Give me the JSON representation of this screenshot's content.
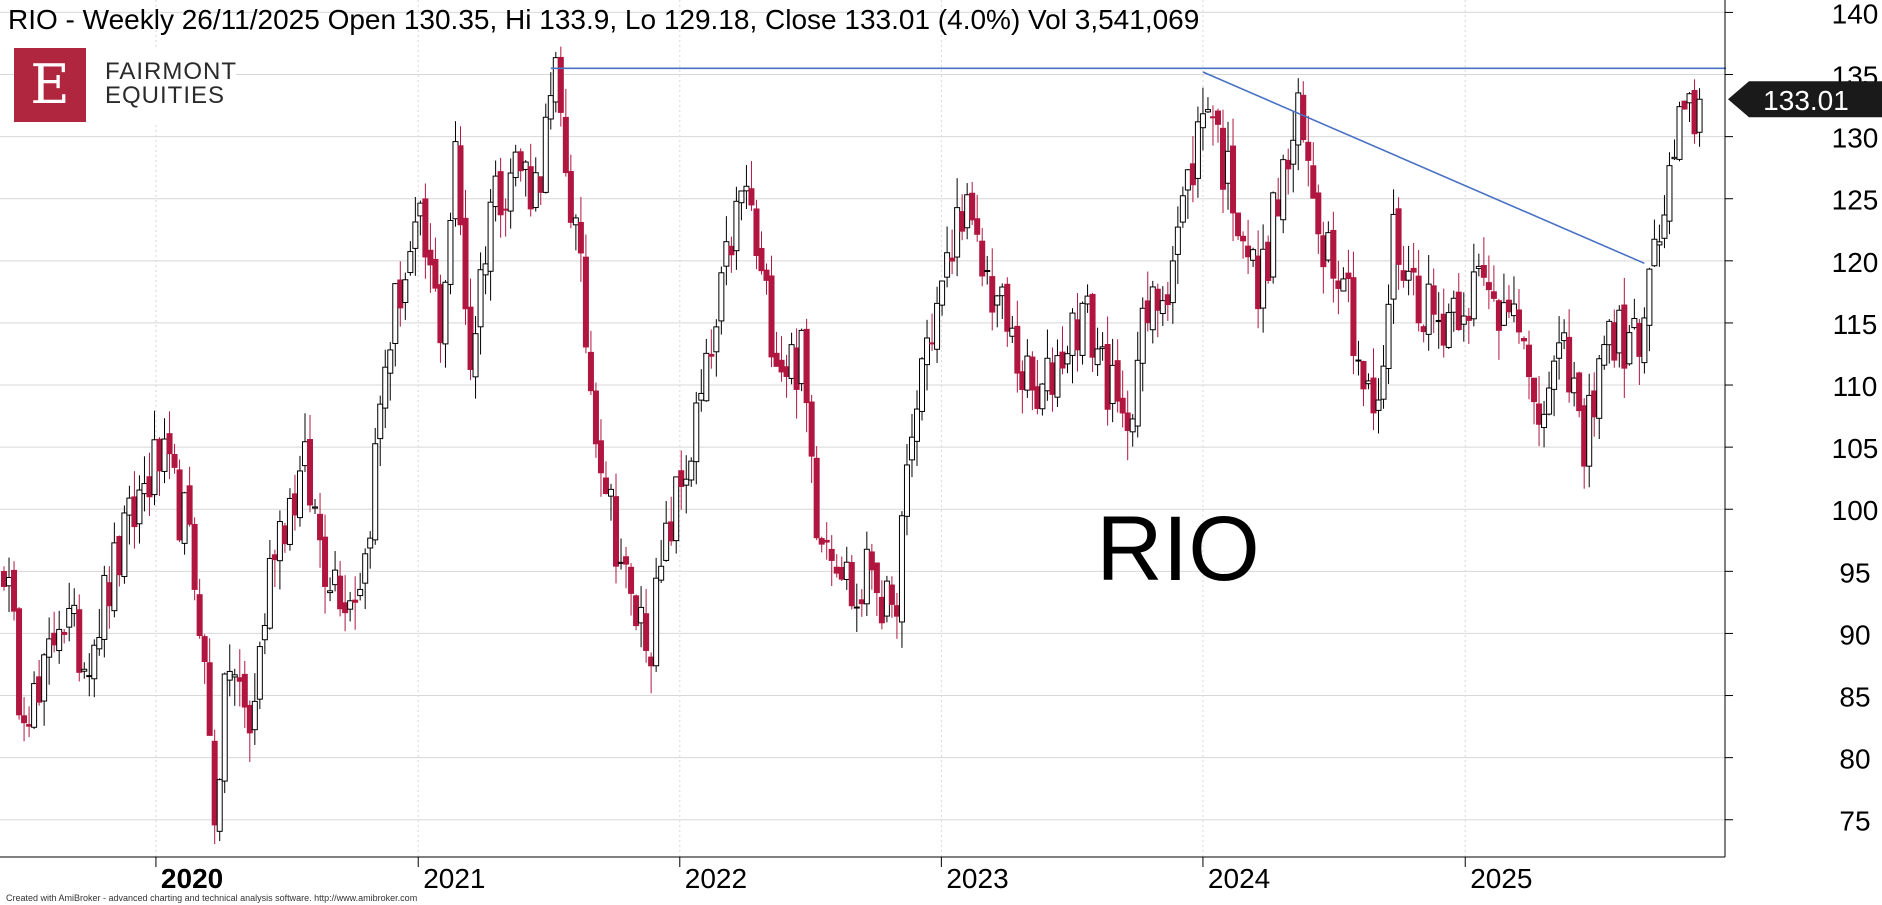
{
  "header": {
    "title": "RIO - Weekly 26/11/2025 Open 130.35, Hi 133.9, Lo 129.18, Close 133.01 (4.0%) Vol 3,541,069"
  },
  "logo": {
    "letter": "E",
    "line1": "FAIRMONT",
    "line2": "EQUITIES",
    "color": "#b0263f"
  },
  "watermark": "RIO",
  "footer": "Created with AmiBroker - advanced charting and technical analysis software. http://www.amibroker.com",
  "price_label": "133.01",
  "colors": {
    "up": "#ffffff",
    "down": "#b0163f",
    "outline": "#000000",
    "trendline": "#4a72c4",
    "grid": "#d8d8d8"
  },
  "chart_data": {
    "type": "candlestick",
    "symbol": "RIO",
    "interval": "Weekly",
    "ylim": [
      72,
      141
    ],
    "y_ticks": [
      75,
      80,
      85,
      90,
      95,
      100,
      105,
      110,
      115,
      120,
      125,
      130,
      135,
      140
    ],
    "x_ticks": [
      "2020",
      "2021",
      "2022",
      "2023",
      "2024",
      "2025"
    ],
    "x_tick_dates": [
      "2020-01-01",
      "2021-01-01",
      "2022-01-01",
      "2023-01-01",
      "2024-01-01",
      "2025-01-01"
    ],
    "start_date": "2019-06-03",
    "end_date": "2025-11-26",
    "last_close": 133.01,
    "anchors": [
      [
        "2019-06-03",
        96
      ],
      [
        "2019-06-24",
        86
      ],
      [
        "2019-07-22",
        84
      ],
      [
        "2019-08-19",
        92
      ],
      [
        "2019-09-23",
        88
      ],
      [
        "2019-11-04",
        95
      ],
      [
        "2019-12-16",
        102
      ],
      [
        "2020-01-06",
        104
      ],
      [
        "2020-02-10",
        99
      ],
      [
        "2020-03-02",
        92
      ],
      [
        "2020-03-23",
        76
      ],
      [
        "2020-04-13",
        88
      ],
      [
        "2020-05-11",
        82
      ],
      [
        "2020-06-15",
        98
      ],
      [
        "2020-07-27",
        103
      ],
      [
        "2020-08-24",
        96
      ],
      [
        "2020-09-28",
        93
      ],
      [
        "2020-10-19",
        96
      ],
      [
        "2020-11-16",
        112
      ],
      [
        "2020-12-07",
        118
      ],
      [
        "2021-01-04",
        122
      ],
      [
        "2021-02-01",
        115
      ],
      [
        "2021-02-22",
        128
      ],
      [
        "2021-03-15",
        112
      ],
      [
        "2021-04-12",
        125
      ],
      [
        "2021-05-17",
        128
      ],
      [
        "2021-06-14",
        126
      ],
      [
        "2021-07-12",
        134
      ],
      [
        "2021-08-09",
        122
      ],
      [
        "2021-08-30",
        110
      ],
      [
        "2021-09-27",
        100
      ],
      [
        "2021-10-25",
        92
      ],
      [
        "2021-11-22",
        90
      ],
      [
        "2021-12-20",
        99
      ],
      [
        "2022-01-17",
        105
      ],
      [
        "2022-02-21",
        114
      ],
      [
        "2022-03-14",
        122
      ],
      [
        "2022-04-04",
        126
      ],
      [
        "2022-04-25",
        118
      ],
      [
        "2022-05-23",
        112
      ],
      [
        "2022-06-20",
        112
      ],
      [
        "2022-07-11",
        100
      ],
      [
        "2022-08-08",
        97
      ],
      [
        "2022-09-05",
        92
      ],
      [
        "2022-09-26",
        96
      ],
      [
        "2022-10-24",
        90
      ],
      [
        "2022-11-07",
        98
      ],
      [
        "2022-12-05",
        112
      ],
      [
        "2023-01-09",
        119
      ],
      [
        "2023-01-30",
        125
      ],
      [
        "2023-02-20",
        120
      ],
      [
        "2023-03-20",
        117
      ],
      [
        "2023-04-17",
        112
      ],
      [
        "2023-05-15",
        108
      ],
      [
        "2023-06-19",
        113
      ],
      [
        "2023-07-17",
        116
      ],
      [
        "2023-08-14",
        112
      ],
      [
        "2023-09-11",
        106
      ],
      [
        "2023-10-09",
        114
      ],
      [
        "2023-11-13",
        119
      ],
      [
        "2023-12-11",
        126
      ],
      [
        "2024-01-08",
        134
      ],
      [
        "2024-01-29",
        128
      ],
      [
        "2024-02-26",
        123
      ],
      [
        "2024-03-18",
        117
      ],
      [
        "2024-04-15",
        125
      ],
      [
        "2024-05-13",
        131
      ],
      [
        "2024-06-17",
        122
      ],
      [
        "2024-07-15",
        120
      ],
      [
        "2024-08-12",
        110
      ],
      [
        "2024-09-02",
        107
      ],
      [
        "2024-09-23",
        122
      ],
      [
        "2024-10-21",
        118
      ],
      [
        "2024-11-25",
        115
      ],
      [
        "2024-12-23",
        117
      ],
      [
        "2025-01-20",
        118
      ],
      [
        "2025-02-17",
        116
      ],
      [
        "2025-03-10",
        119
      ],
      [
        "2025-04-07",
        106
      ],
      [
        "2025-04-28",
        110
      ],
      [
        "2025-05-26",
        112
      ],
      [
        "2025-06-16",
        104
      ],
      [
        "2025-07-07",
        113
      ],
      [
        "2025-07-28",
        114
      ],
      [
        "2025-08-25",
        113
      ],
      [
        "2025-09-15",
        118
      ],
      [
        "2025-10-06",
        124
      ],
      [
        "2025-10-27",
        130
      ],
      [
        "2025-11-26",
        133.01
      ]
    ],
    "horizontal_lines": [
      {
        "value": 135.5,
        "from": "2021-07-05",
        "to": "2025-12-31"
      }
    ],
    "trendlines": [
      {
        "from": [
          "2024-01-01",
          135.2
        ],
        "to": [
          "2025-09-08",
          119.8
        ]
      }
    ]
  }
}
